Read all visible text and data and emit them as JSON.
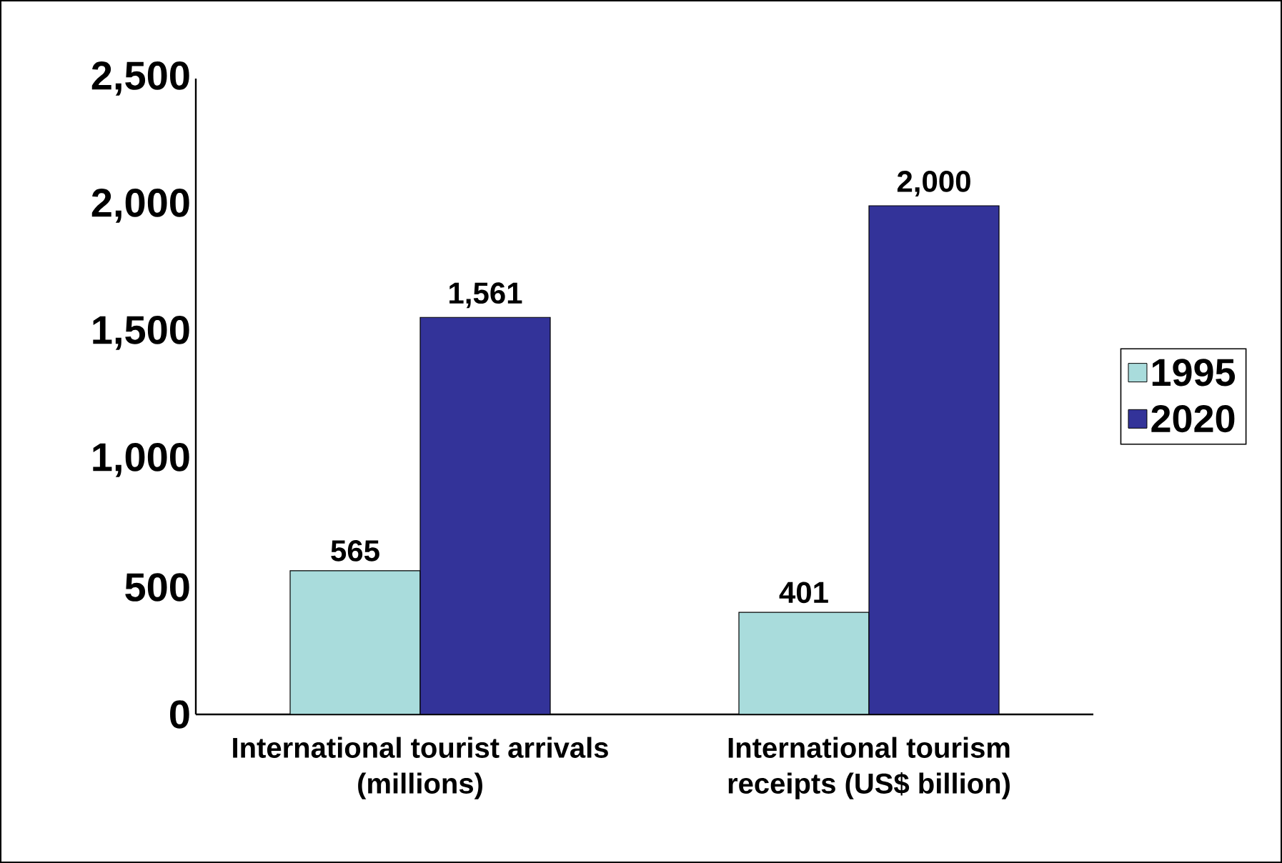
{
  "chart_data": {
    "type": "bar",
    "categories": [
      "International tourist arrivals (millions)",
      "International tourism receipts (US$ billion)"
    ],
    "series": [
      {
        "name": "1995",
        "color": "#a9dcdc",
        "values": [
          565,
          401
        ],
        "value_labels": [
          "565",
          "401"
        ]
      },
      {
        "name": "2020",
        "color": "#333399",
        "values": [
          1561,
          2000
        ],
        "value_labels": [
          "1,561",
          "2,000"
        ]
      }
    ],
    "ylim": [
      0,
      2500
    ],
    "yticks": [
      {
        "value": 0,
        "label": "0"
      },
      {
        "value": 500,
        "label": "500"
      },
      {
        "value": 1000,
        "label": "1,000"
      },
      {
        "value": 1500,
        "label": "1,500"
      },
      {
        "value": 2000,
        "label": "2,000"
      },
      {
        "value": 2500,
        "label": "2,500"
      }
    ],
    "grid": false,
    "legend": "right"
  }
}
